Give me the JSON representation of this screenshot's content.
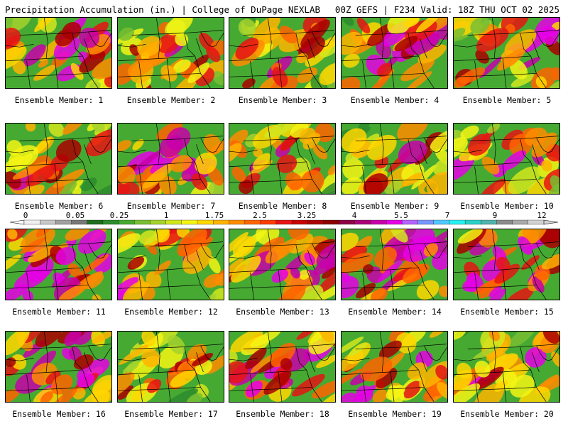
{
  "header": {
    "title": "Precipitation Accumulation (in.) | College of DuPage NEXLAB",
    "run_info": "00Z GEFS | F234 Valid: 18Z THU OCT 02 2025"
  },
  "panel_label_prefix": "Ensemble Member: ",
  "members": [
    {
      "id": 1,
      "label": "Ensemble Member: 1",
      "intensity": 0.7
    },
    {
      "id": 2,
      "label": "Ensemble Member: 2",
      "intensity": 0.55
    },
    {
      "id": 3,
      "label": "Ensemble Member: 3",
      "intensity": 0.45
    },
    {
      "id": 4,
      "label": "Ensemble Member: 4",
      "intensity": 0.7
    },
    {
      "id": 5,
      "label": "Ensemble Member: 5",
      "intensity": 0.6
    },
    {
      "id": 6,
      "label": "Ensemble Member: 6",
      "intensity": 0.45
    },
    {
      "id": 7,
      "label": "Ensemble Member: 7",
      "intensity": 0.7
    },
    {
      "id": 8,
      "label": "Ensemble Member: 8",
      "intensity": 0.5
    },
    {
      "id": 9,
      "label": "Ensemble Member: 9",
      "intensity": 0.4
    },
    {
      "id": 10,
      "label": "Ensemble Member: 10",
      "intensity": 0.65
    },
    {
      "id": 11,
      "label": "Ensemble Member: 11",
      "intensity": 0.8
    },
    {
      "id": 12,
      "label": "Ensemble Member: 12",
      "intensity": 0.55
    },
    {
      "id": 13,
      "label": "Ensemble Member: 13",
      "intensity": 0.6
    },
    {
      "id": 14,
      "label": "Ensemble Member: 14",
      "intensity": 0.7
    },
    {
      "id": 15,
      "label": "Ensemble Member: 15",
      "intensity": 0.8
    },
    {
      "id": 16,
      "label": "Ensemble Member: 16",
      "intensity": 0.7
    },
    {
      "id": 17,
      "label": "Ensemble Member: 17",
      "intensity": 0.35
    },
    {
      "id": 18,
      "label": "Ensemble Member: 18",
      "intensity": 0.6
    },
    {
      "id": 19,
      "label": "Ensemble Member: 19",
      "intensity": 0.65
    },
    {
      "id": 20,
      "label": "Ensemble Member: 20",
      "intensity": 0.45
    }
  ],
  "colorbar": {
    "labels": [
      "0",
      "0.05",
      "0.25",
      "1",
      "1.75",
      "2.5",
      "3.25",
      "4",
      "5.5",
      "7",
      "9",
      "12"
    ],
    "colors": [
      "#f0f0f0",
      "#c8c8c8",
      "#a0a0a0",
      "#787878",
      "#1e6e1e",
      "#2d8c2d",
      "#46aa32",
      "#78be32",
      "#a5d22d",
      "#d2e61e",
      "#f5f514",
      "#ffd700",
      "#ffb400",
      "#ff8c00",
      "#ff6400",
      "#ff3c00",
      "#e61414",
      "#c80000",
      "#aa0000",
      "#8c0000",
      "#8c0046",
      "#aa0078",
      "#c800aa",
      "#e600e6",
      "#b464ff",
      "#7896ff",
      "#50c8ff",
      "#28f0f0",
      "#28d2c8",
      "#50b4aa",
      "#8c8c8c",
      "#aaaaaa",
      "#d2d2d2"
    ]
  }
}
